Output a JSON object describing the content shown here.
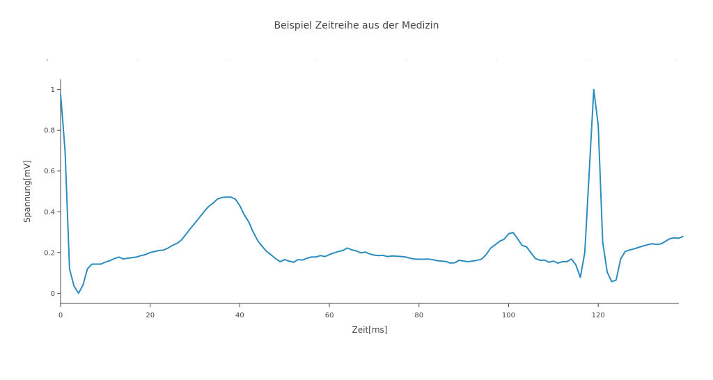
{
  "chart_data": {
    "type": "line",
    "title": "Beispiel Zeitreihe aus der Medizin",
    "xlabel": "Zeit[ms]",
    "ylabel": "Spannung[mV]",
    "xlim": [
      0,
      138
    ],
    "ylim": [
      -0.05,
      1.05
    ],
    "x_ticks": [
      0,
      20,
      40,
      60,
      80,
      100,
      120
    ],
    "y_ticks": [
      0,
      0.2,
      0.4,
      0.6,
      0.8,
      1
    ],
    "grid": false,
    "line_color": "#2b8cbe",
    "series": [
      {
        "values": [
          0.98,
          0.7,
          0.12,
          0.035,
          0.0,
          0.04,
          0.12,
          0.143,
          0.143,
          0.143,
          0.153,
          0.16,
          0.17,
          0.178,
          0.168,
          0.172,
          0.175,
          0.178,
          0.185,
          0.19,
          0.2,
          0.205,
          0.21,
          0.212,
          0.222,
          0.235,
          0.245,
          0.262,
          0.29,
          0.318,
          0.345,
          0.372,
          0.4,
          0.425,
          0.442,
          0.462,
          0.47,
          0.472,
          0.472,
          0.462,
          0.43,
          0.385,
          0.35,
          0.3,
          0.258,
          0.23,
          0.205,
          0.188,
          0.17,
          0.155,
          0.165,
          0.158,
          0.152,
          0.165,
          0.163,
          0.172,
          0.178,
          0.178,
          0.185,
          0.18,
          0.19,
          0.198,
          0.205,
          0.21,
          0.222,
          0.213,
          0.208,
          0.198,
          0.202,
          0.193,
          0.187,
          0.185,
          0.186,
          0.18,
          0.183,
          0.182,
          0.18,
          0.178,
          0.172,
          0.168,
          0.167,
          0.167,
          0.168,
          0.165,
          0.16,
          0.158,
          0.156,
          0.148,
          0.15,
          0.162,
          0.158,
          0.155,
          0.158,
          0.162,
          0.168,
          0.19,
          0.222,
          0.238,
          0.255,
          0.265,
          0.292,
          0.298,
          0.268,
          0.235,
          0.228,
          0.198,
          0.17,
          0.162,
          0.163,
          0.152,
          0.158,
          0.148,
          0.155,
          0.155,
          0.168,
          0.14,
          0.078,
          0.2,
          0.6,
          1.0,
          0.825,
          0.25,
          0.105,
          0.057,
          0.065,
          0.168,
          0.205,
          0.212,
          0.218,
          0.225,
          0.232,
          0.238,
          0.243,
          0.24,
          0.242,
          0.255,
          0.268,
          0.272,
          0.27,
          0.28
        ]
      }
    ]
  }
}
